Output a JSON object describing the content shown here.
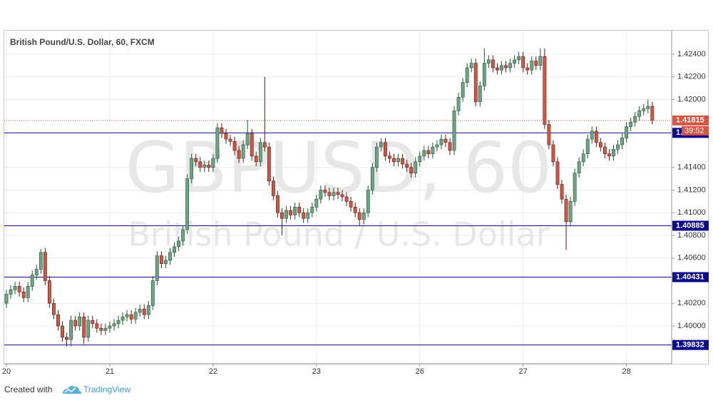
{
  "chart_data": {
    "type": "candlestick",
    "title": "British Pound/U.S. Dollar, 60, FXCM",
    "watermark": "GBPUSD, 60",
    "watermark_subtitle": "British Pound / U.S. Dollar",
    "up_color": "#6ba583",
    "up_border": "#225437",
    "down_color": "#d75442",
    "down_border": "#5b1a13",
    "open": [
      1.402,
      1.4028,
      1.4032,
      1.4035,
      1.403,
      1.4025,
      1.4035,
      1.4045,
      1.405,
      1.4065,
      1.404,
      1.402,
      1.401,
      1.4,
      1.399,
      1.3988,
      1.4005,
      1.4,
      1.4008,
      1.399,
      1.4005,
      1.4002,
      1.3998,
      1.3996,
      1.3998,
      1.4,
      1.4002,
      1.4005,
      1.4008,
      1.401,
      1.4006,
      1.4012,
      1.4015,
      1.401,
      1.4018,
      1.404,
      1.4062,
      1.4055,
      1.4058,
      1.4065,
      1.407,
      1.4075,
      1.4085,
      1.413,
      1.4148,
      1.4145,
      1.414,
      1.4142,
      1.414,
      1.4148,
      1.4175,
      1.417,
      1.4165,
      1.4163,
      1.4155,
      1.4148,
      1.416,
      1.417,
      1.415,
      1.4145,
      1.4162,
      1.4158,
      1.4128,
      1.4115,
      1.41,
      1.4095,
      1.4102,
      1.4098,
      1.4105,
      1.41,
      1.4095,
      1.41,
      1.4105,
      1.4112,
      1.412,
      1.4118,
      1.4115,
      1.4118,
      1.4116,
      1.4114,
      1.411,
      1.4105,
      1.41,
      1.4094,
      1.41,
      1.412,
      1.414,
      1.4158,
      1.4162,
      1.415,
      1.4148,
      1.4145,
      1.4148,
      1.4143,
      1.414,
      1.4135,
      1.4145,
      1.415,
      1.4155,
      1.4152,
      1.4158,
      1.416,
      1.4165,
      1.4162,
      1.4155,
      1.419,
      1.4202,
      1.4215,
      1.4228,
      1.4232,
      1.4198,
      1.4212,
      1.4232,
      1.4235,
      1.4228,
      1.4226,
      1.423,
      1.4228,
      1.4232,
      1.4235,
      1.4238,
      1.4228,
      1.4226,
      1.4234,
      1.423,
      1.4238,
      1.4178,
      1.416,
      1.4145,
      1.4125,
      1.4112,
      1.4092,
      1.411,
      1.4135,
      1.4145,
      1.4152,
      1.4165,
      1.4172,
      1.4162,
      1.4158,
      1.4152,
      1.415,
      1.4156,
      1.416,
      1.4166,
      1.4176,
      1.418,
      1.4185,
      1.419,
      1.4192,
      1.4194
    ],
    "high": [
      1.4032,
      1.4036,
      1.4039,
      1.4039,
      1.4034,
      1.4039,
      1.4049,
      1.4054,
      1.4068,
      1.4069,
      1.4044,
      1.4024,
      1.4014,
      1.4004,
      1.3994,
      1.4009,
      1.4009,
      1.4012,
      1.4012,
      1.4009,
      1.4009,
      1.4006,
      1.4002,
      1.4002,
      1.4004,
      1.4006,
      1.4009,
      1.4012,
      1.4014,
      1.4014,
      1.4016,
      1.4019,
      1.4019,
      1.4022,
      1.4044,
      1.4066,
      1.4066,
      1.4062,
      1.4069,
      1.4074,
      1.4079,
      1.4089,
      1.4134,
      1.4152,
      1.4152,
      1.4149,
      1.4146,
      1.4146,
      1.4152,
      1.4179,
      1.4179,
      1.4174,
      1.4169,
      1.4167,
      1.4159,
      1.4164,
      1.4182,
      1.4174,
      1.4154,
      1.4166,
      1.422,
      1.4162,
      1.4132,
      1.4119,
      1.4104,
      1.4106,
      1.4106,
      1.4109,
      1.4109,
      1.4104,
      1.4104,
      1.4109,
      1.4116,
      1.4124,
      1.4124,
      1.4122,
      1.4122,
      1.4122,
      1.412,
      1.4118,
      1.4114,
      1.4109,
      1.4104,
      1.4104,
      1.4124,
      1.4144,
      1.4162,
      1.4166,
      1.4166,
      1.4154,
      1.4152,
      1.4152,
      1.4152,
      1.4147,
      1.4144,
      1.4149,
      1.4154,
      1.4159,
      1.4159,
      1.4162,
      1.4164,
      1.4169,
      1.4169,
      1.4166,
      1.4194,
      1.4206,
      1.4219,
      1.4232,
      1.4236,
      1.4236,
      1.4216,
      1.4245,
      1.4239,
      1.4239,
      1.4232,
      1.4234,
      1.4234,
      1.4236,
      1.4239,
      1.4242,
      1.4242,
      1.4232,
      1.4238,
      1.4238,
      1.4245,
      1.4245,
      1.4182,
      1.4164,
      1.4149,
      1.4129,
      1.4116,
      1.4114,
      1.4139,
      1.4149,
      1.4156,
      1.4169,
      1.4176,
      1.4176,
      1.4166,
      1.4162,
      1.4156,
      1.416,
      1.4164,
      1.417,
      1.418,
      1.4184,
      1.4189,
      1.4194,
      1.4196,
      1.42,
      1.4198
    ],
    "low": [
      1.4016,
      1.4024,
      1.4028,
      1.4026,
      1.4021,
      1.4021,
      1.4031,
      1.4041,
      1.4046,
      1.4036,
      1.4016,
      1.4006,
      1.3996,
      1.3986,
      1.3982,
      1.3982,
      1.3996,
      1.3996,
      1.3984,
      1.3986,
      1.3998,
      1.3994,
      1.3992,
      1.3992,
      1.3994,
      1.3996,
      1.3998,
      1.4001,
      1.4004,
      1.4002,
      1.4002,
      1.4008,
      1.4006,
      1.4006,
      1.4014,
      1.4036,
      1.4051,
      1.4051,
      1.4054,
      1.4061,
      1.4066,
      1.4071,
      1.4081,
      1.4126,
      1.4141,
      1.4136,
      1.4136,
      1.4136,
      1.4136,
      1.4144,
      1.4166,
      1.4161,
      1.4159,
      1.4151,
      1.4144,
      1.4144,
      1.4156,
      1.4146,
      1.4141,
      1.4141,
      1.4154,
      1.4124,
      1.4111,
      1.4096,
      1.408,
      1.4091,
      1.4094,
      1.4094,
      1.4096,
      1.4091,
      1.4091,
      1.4096,
      1.4101,
      1.4108,
      1.4114,
      1.4111,
      1.4111,
      1.4112,
      1.411,
      1.4106,
      1.4101,
      1.4096,
      1.4088,
      1.409,
      1.4096,
      1.4116,
      1.4136,
      1.4154,
      1.4146,
      1.4144,
      1.4141,
      1.4141,
      1.4139,
      1.4136,
      1.4131,
      1.4131,
      1.4141,
      1.4146,
      1.4148,
      1.4148,
      1.4154,
      1.4156,
      1.4158,
      1.4151,
      1.4151,
      1.4186,
      1.4198,
      1.4211,
      1.4224,
      1.4194,
      1.4194,
      1.4208,
      1.4228,
      1.4224,
      1.4222,
      1.4222,
      1.4224,
      1.4224,
      1.4228,
      1.4231,
      1.4224,
      1.4222,
      1.4222,
      1.4226,
      1.4226,
      1.4174,
      1.4156,
      1.4141,
      1.4121,
      1.4108,
      1.4067,
      1.4088,
      1.4106,
      1.4131,
      1.4141,
      1.4148,
      1.4161,
      1.4158,
      1.4154,
      1.4148,
      1.4146,
      1.4146,
      1.4152,
      1.4156,
      1.4162,
      1.4172,
      1.4176,
      1.4181,
      1.4186,
      1.4188,
      1.4178
    ],
    "close": [
      1.4028,
      1.4032,
      1.4035,
      1.403,
      1.4025,
      1.4035,
      1.4045,
      1.405,
      1.4065,
      1.404,
      1.402,
      1.401,
      1.4,
      1.399,
      1.3988,
      1.4005,
      1.4,
      1.4008,
      1.399,
      1.4005,
      1.4002,
      1.3998,
      1.3996,
      1.3998,
      1.4,
      1.4002,
      1.4005,
      1.4008,
      1.401,
      1.4006,
      1.4012,
      1.4015,
      1.401,
      1.4018,
      1.404,
      1.4062,
      1.4055,
      1.4058,
      1.4065,
      1.407,
      1.4075,
      1.4085,
      1.413,
      1.4148,
      1.4145,
      1.414,
      1.4142,
      1.414,
      1.4148,
      1.4175,
      1.417,
      1.4165,
      1.4163,
      1.4155,
      1.4148,
      1.416,
      1.417,
      1.415,
      1.4145,
      1.4162,
      1.4158,
      1.4128,
      1.4115,
      1.41,
      1.4095,
      1.4102,
      1.4098,
      1.4105,
      1.41,
      1.4095,
      1.41,
      1.4105,
      1.4112,
      1.412,
      1.4118,
      1.4115,
      1.4118,
      1.4116,
      1.4114,
      1.411,
      1.4105,
      1.41,
      1.4094,
      1.41,
      1.412,
      1.414,
      1.4158,
      1.4162,
      1.415,
      1.4148,
      1.4145,
      1.4148,
      1.4143,
      1.414,
      1.4135,
      1.4145,
      1.415,
      1.4155,
      1.4152,
      1.4158,
      1.416,
      1.4165,
      1.4162,
      1.4155,
      1.419,
      1.4202,
      1.4215,
      1.4228,
      1.4232,
      1.4198,
      1.4212,
      1.4232,
      1.4235,
      1.4228,
      1.4226,
      1.423,
      1.4228,
      1.4232,
      1.4235,
      1.4238,
      1.4228,
      1.4226,
      1.4234,
      1.423,
      1.4238,
      1.4178,
      1.416,
      1.4145,
      1.4125,
      1.4112,
      1.4092,
      1.411,
      1.4135,
      1.4145,
      1.4152,
      1.4165,
      1.4172,
      1.4162,
      1.4158,
      1.4152,
      1.415,
      1.4156,
      1.416,
      1.4166,
      1.4176,
      1.418,
      1.4185,
      1.419,
      1.4192,
      1.4194,
      1.41815
    ],
    "xlim": [
      -0.5,
      154.5
    ],
    "xticks": [
      {
        "value": 0,
        "label": "20"
      },
      {
        "value": 24,
        "label": "21"
      },
      {
        "value": 48,
        "label": "22"
      },
      {
        "value": 72,
        "label": "23"
      },
      {
        "value": 96,
        "label": "26"
      },
      {
        "value": 120,
        "label": "27"
      },
      {
        "value": 144,
        "label": "28"
      }
    ],
    "ylim": [
      1.39666,
      1.42614
    ],
    "yticks": [
      {
        "value": 1.424,
        "label": "1.42400"
      },
      {
        "value": 1.422,
        "label": "1.42200"
      },
      {
        "value": 1.42,
        "label": "1.42000"
      },
      {
        "value": 1.414,
        "label": "1.41400"
      },
      {
        "value": 1.412,
        "label": "1.41200"
      },
      {
        "value": 1.41,
        "label": "1.41000"
      },
      {
        "value": 1.408,
        "label": "1.40800"
      },
      {
        "value": 1.406,
        "label": "1.40600"
      },
      {
        "value": 1.402,
        "label": "1.40200"
      },
      {
        "value": 1.4,
        "label": "1.40000"
      }
    ],
    "grid": true,
    "hlines": [
      1.41705,
      1.40885,
      1.40431,
      1.39832
    ],
    "hline_color": "#0b0b8c",
    "last_price": 1.41815,
    "last_price_color": "#d75442",
    "countdown": "39:52"
  },
  "footer": {
    "prefix": "Created with",
    "brand": "TradingView"
  }
}
